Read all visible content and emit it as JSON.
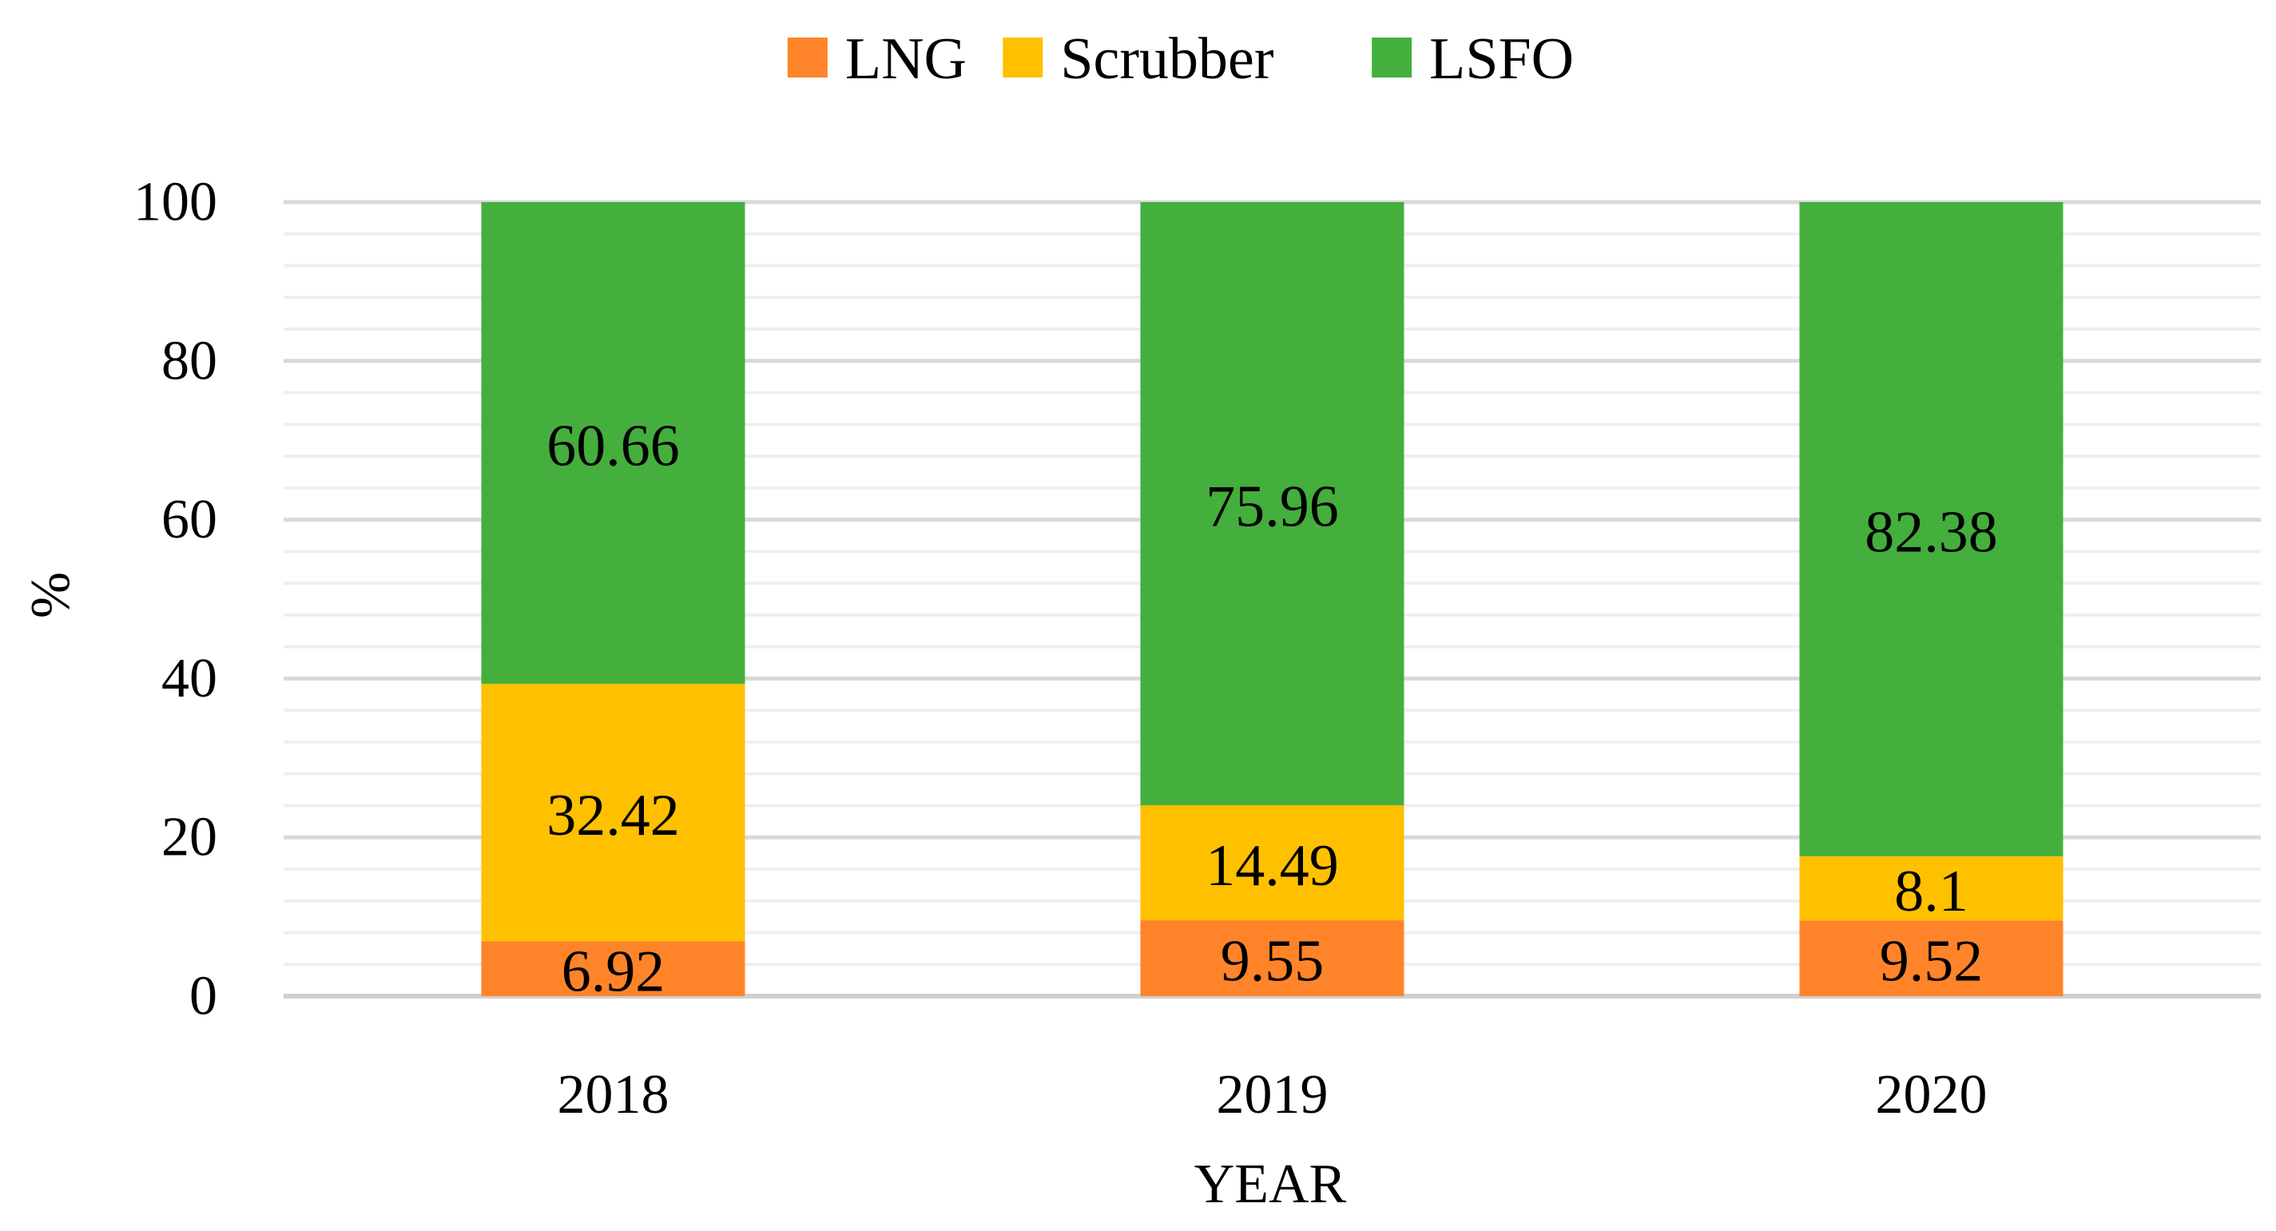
{
  "chart_data": {
    "type": "bar",
    "stacked": true,
    "title": "",
    "xlabel": "YEAR",
    "ylabel": "%",
    "ylim": [
      0,
      100
    ],
    "yticks": [
      0,
      20,
      40,
      60,
      80,
      100
    ],
    "minor_grid_step": 4,
    "legend_position": "top-center",
    "categories": [
      "2018",
      "2019",
      "2020"
    ],
    "series": [
      {
        "name": "LNG",
        "color": "#FF8429",
        "values": [
          6.92,
          9.55,
          9.52
        ]
      },
      {
        "name": "Scrubber",
        "color": "#FFC000",
        "values": [
          32.42,
          14.49,
          8.1
        ]
      },
      {
        "name": "LSFO",
        "color": "#44AF3C",
        "values": [
          60.66,
          75.96,
          82.38
        ]
      }
    ]
  }
}
